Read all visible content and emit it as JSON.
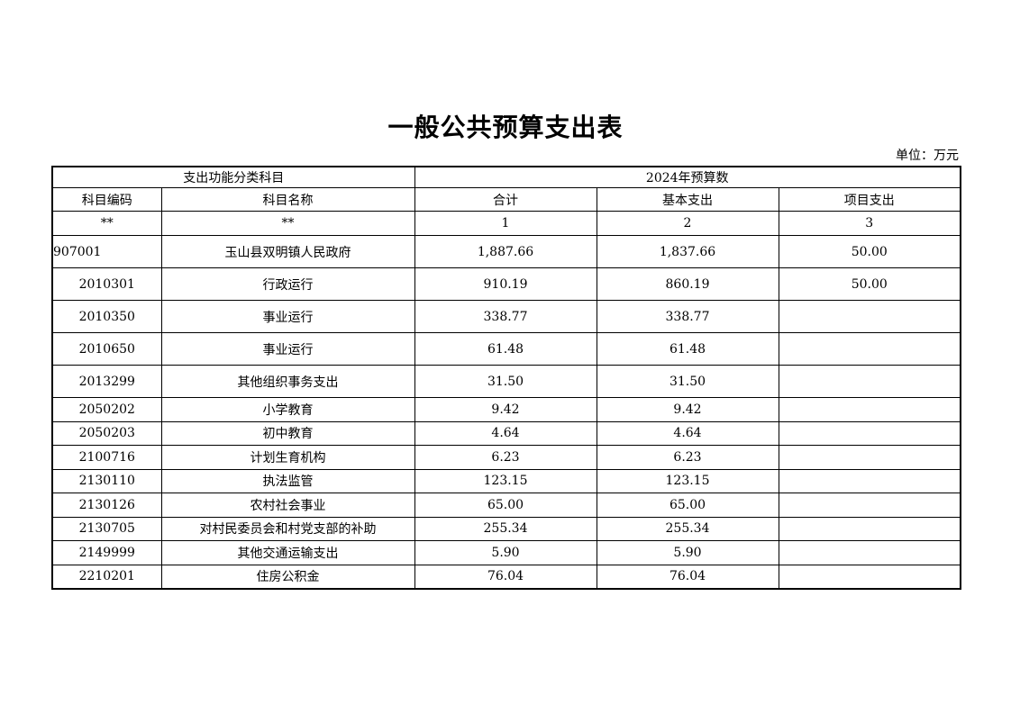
{
  "title": "一般公共预算支出表",
  "unit": "单位：万元",
  "header": {
    "group_left": "支出功能分类科目",
    "group_right": "2024年预算数",
    "columns": [
      "科目编码",
      "科目名称",
      "合计",
      "基本支出",
      "项目支出"
    ],
    "index_row": [
      "**",
      "**",
      "1",
      "2",
      "3"
    ]
  },
  "rows": [
    {
      "code": "907001",
      "name": "玉山县双明镇人民政府",
      "total": "1,887.66",
      "basic": "1,837.66",
      "project": "50.00"
    },
    {
      "code": "2010301",
      "name": "行政运行",
      "total": "910.19",
      "basic": "860.19",
      "project": "50.00"
    },
    {
      "code": "2010350",
      "name": "事业运行",
      "total": "338.77",
      "basic": "338.77",
      "project": ""
    },
    {
      "code": "2010650",
      "name": "事业运行",
      "total": "61.48",
      "basic": "61.48",
      "project": ""
    },
    {
      "code": "2013299",
      "name": "其他组织事务支出",
      "total": "31.50",
      "basic": "31.50",
      "project": ""
    },
    {
      "code": "2050202",
      "name": "小学教育",
      "total": "9.42",
      "basic": "9.42",
      "project": ""
    },
    {
      "code": "2050203",
      "name": "初中教育",
      "total": "4.64",
      "basic": "4.64",
      "project": ""
    },
    {
      "code": "2100716",
      "name": "计划生育机构",
      "total": "6.23",
      "basic": "6.23",
      "project": ""
    },
    {
      "code": "2130110",
      "name": "执法监管",
      "total": "123.15",
      "basic": "123.15",
      "project": ""
    },
    {
      "code": "2130126",
      "name": "农村社会事业",
      "total": "65.00",
      "basic": "65.00",
      "project": ""
    },
    {
      "code": "2130705",
      "name": "对村民委员会和村党支部的补助",
      "total": "255.34",
      "basic": "255.34",
      "project": ""
    },
    {
      "code": "2149999",
      "name": "其他交通运输支出",
      "total": "5.90",
      "basic": "5.90",
      "project": ""
    },
    {
      "code": "2210201",
      "name": "住房公积金",
      "total": "76.04",
      "basic": "76.04",
      "project": ""
    }
  ]
}
